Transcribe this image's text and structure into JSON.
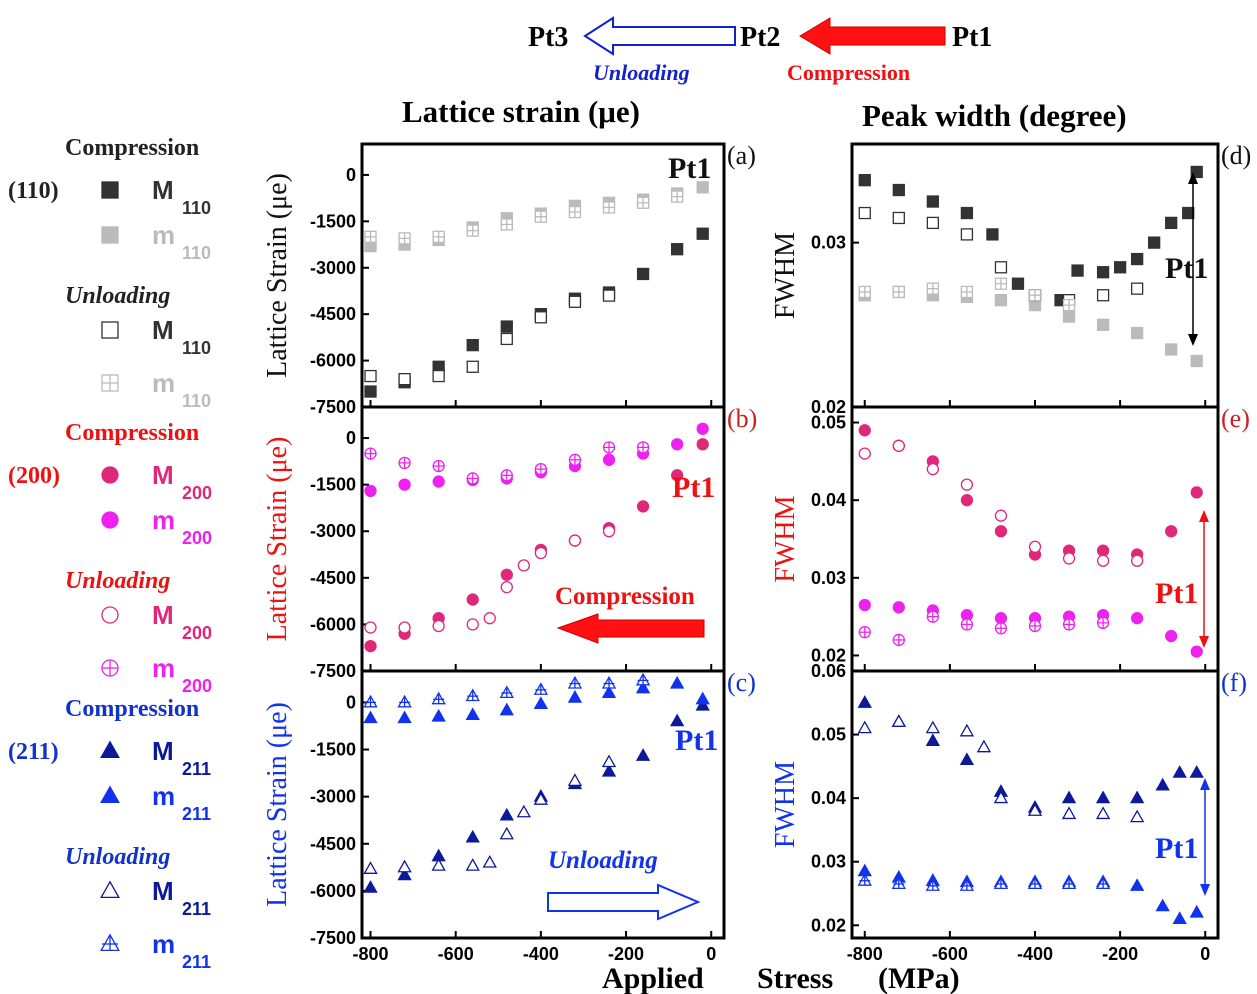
{
  "header": {
    "pt1": "Pt1",
    "pt2": "Pt2",
    "pt3": "Pt3",
    "unloading": "Unloading",
    "compression": "Compression",
    "lattice_title": "Lattice strain (μe)",
    "peak_title": "Peak  width (degree)",
    "xlabel_applied": "Applied",
    "xlabel_stress": "Stress",
    "xlabel_unit": "(MPa)"
  },
  "colors": {
    "black_dark": "#333333",
    "gray_light": "#bbbbbb",
    "pink_dark": "#e0287a",
    "magenta": "#ee22ee",
    "navy": "#0c1a9a",
    "blue": "#1133ee",
    "red": "#ff1111"
  },
  "legend": {
    "groups": [
      {
        "plane": "(110)",
        "color": "#222222",
        "compression": "Compression",
        "unloading": "Unloading",
        "items": [
          {
            "symbol": "filled-square",
            "color": "#333333",
            "main": "M",
            "sub": "110"
          },
          {
            "symbol": "filled-square",
            "color": "#bbbbbb",
            "main": "m",
            "sub": "110"
          },
          {
            "symbol": "open-square",
            "color": "#333333",
            "main": "M",
            "sub": "110"
          },
          {
            "symbol": "crossed-square",
            "color": "#bbbbbb",
            "main": "m",
            "sub": "110"
          }
        ]
      },
      {
        "plane": "(200)",
        "color": "#ee1111",
        "compression": "Compression",
        "unloading": "Unloading",
        "items": [
          {
            "symbol": "filled-circle",
            "color": "#e0287a",
            "main": "M",
            "sub": "200"
          },
          {
            "symbol": "filled-circle",
            "color": "#ee22ee",
            "main": "m",
            "sub": "200"
          },
          {
            "symbol": "open-circle",
            "color": "#e0287a",
            "main": "M",
            "sub": "200"
          },
          {
            "symbol": "crossed-circle",
            "color": "#ee22ee",
            "main": "m",
            "sub": "200"
          }
        ]
      },
      {
        "plane": "(211)",
        "color": "#1133cc",
        "compression": "Compression",
        "unloading": "Unloading",
        "items": [
          {
            "symbol": "filled-triangle",
            "color": "#0c1a9a",
            "main": "M",
            "sub": "211"
          },
          {
            "symbol": "filled-triangle",
            "color": "#1133ee",
            "main": "m",
            "sub": "211"
          },
          {
            "symbol": "open-triangle",
            "color": "#0c1a9a",
            "main": "M",
            "sub": "211"
          },
          {
            "symbol": "crossed-triangle",
            "color": "#1133ee",
            "main": "m",
            "sub": "211"
          }
        ]
      }
    ]
  },
  "chart_data": [
    {
      "id": "a",
      "panel_label": "(a)",
      "type": "scatter",
      "ylabel": "Lattice Strain (μe)",
      "xlabel": "Applied Stress (MPa)",
      "xlim": [
        -820,
        30
      ],
      "ylim": [
        -7500,
        1000
      ],
      "yticks": [
        0,
        -1500,
        -3000,
        -4500,
        -6000,
        -7500
      ],
      "xticks": [
        -800,
        -600,
        -400,
        -200,
        0
      ],
      "annotation": "Pt1",
      "series": [
        {
          "key": "M110_c",
          "symbol": "filled-square",
          "color": "#333333",
          "x": [
            -800,
            -720,
            -640,
            -560,
            -480,
            -400,
            -320,
            -240,
            -160,
            -80,
            -20
          ],
          "y": [
            -7000,
            -6700,
            -6200,
            -5500,
            -4900,
            -4500,
            -4000,
            -3800,
            -3200,
            -2400,
            -1900
          ]
        },
        {
          "key": "m110_c",
          "symbol": "filled-square",
          "color": "#bbbbbb",
          "x": [
            -800,
            -720,
            -640,
            -560,
            -480,
            -400,
            -320,
            -240,
            -160,
            -80,
            -20
          ],
          "y": [
            -2300,
            -2250,
            -2100,
            -1700,
            -1400,
            -1250,
            -1000,
            -900,
            -800,
            -600,
            -400
          ]
        },
        {
          "key": "M110_u",
          "symbol": "open-square",
          "color": "#333333",
          "x": [
            -800,
            -720,
            -640,
            -560,
            -480,
            -400,
            -320,
            -240
          ],
          "y": [
            -6500,
            -6600,
            -6500,
            -6200,
            -5300,
            -4600,
            -4100,
            -3900
          ]
        },
        {
          "key": "m110_u",
          "symbol": "crossed-square",
          "color": "#bbbbbb",
          "x": [
            -800,
            -720,
            -640,
            -560,
            -480,
            -400,
            -320,
            -240,
            -160,
            -80
          ],
          "y": [
            -2000,
            -2050,
            -2000,
            -1800,
            -1600,
            -1350,
            -1200,
            -1050,
            -900,
            -700
          ]
        }
      ]
    },
    {
      "id": "b",
      "panel_label": "(b)",
      "type": "scatter",
      "ylabel": "Lattice Strain (μe)",
      "xlabel": "Applied Stress (MPa)",
      "xlim": [
        -820,
        30
      ],
      "ylim": [
        -7500,
        1000
      ],
      "yticks": [
        0,
        -1500,
        -3000,
        -4500,
        -6000,
        -7500
      ],
      "xticks": [
        -800,
        -600,
        -400,
        -200,
        0
      ],
      "annotation": "Pt1",
      "arrow_label": "Compression",
      "series": [
        {
          "key": "M200_c",
          "symbol": "filled-circle",
          "color": "#e0287a",
          "x": [
            -800,
            -720,
            -640,
            -560,
            -480,
            -400,
            -320,
            -240,
            -160,
            -80,
            -20
          ],
          "y": [
            -6700,
            -6300,
            -5800,
            -5200,
            -4400,
            -3600,
            -3300,
            -2900,
            -2200,
            -1200,
            -200
          ]
        },
        {
          "key": "m200_c",
          "symbol": "filled-circle",
          "color": "#ee22ee",
          "x": [
            -800,
            -720,
            -640,
            -560,
            -480,
            -400,
            -320,
            -240,
            -160,
            -80,
            -20
          ],
          "y": [
            -1700,
            -1500,
            -1400,
            -1350,
            -1300,
            -1100,
            -900,
            -700,
            -500,
            -200,
            300
          ]
        },
        {
          "key": "M200_u",
          "symbol": "open-circle",
          "color": "#e0287a",
          "x": [
            -800,
            -720,
            -640,
            -560,
            -520,
            -480,
            -440,
            -400,
            -320,
            -240
          ],
          "y": [
            -6100,
            -6100,
            -6050,
            -6000,
            -5800,
            -4800,
            -4100,
            -3700,
            -3300,
            -3000
          ]
        },
        {
          "key": "m200_u",
          "symbol": "crossed-circle",
          "color": "#ee22ee",
          "x": [
            -800,
            -720,
            -640,
            -560,
            -480,
            -400,
            -320,
            -240,
            -160
          ],
          "y": [
            -500,
            -800,
            -900,
            -1300,
            -1200,
            -1000,
            -700,
            -300,
            -300
          ]
        }
      ]
    },
    {
      "id": "c",
      "panel_label": "(c)",
      "type": "scatter",
      "ylabel": "Lattice Strain (μe)",
      "xlabel": "Applied Stress (MPa)",
      "xlim": [
        -820,
        30
      ],
      "ylim": [
        -7500,
        1000
      ],
      "yticks": [
        0,
        -1500,
        -3000,
        -4500,
        -6000,
        -7500
      ],
      "xticks": [
        -800,
        -600,
        -400,
        -200,
        0
      ],
      "xtick_labels": [
        "-800",
        "-600",
        "-400",
        "-200",
        "0"
      ],
      "annotation": "Pt1",
      "arrow_label": "Unloading",
      "series": [
        {
          "key": "M211_c",
          "symbol": "filled-triangle",
          "color": "#0c1a9a",
          "x": [
            -800,
            -720,
            -640,
            -560,
            -480,
            -400,
            -320,
            -240,
            -160,
            -80,
            -20
          ],
          "y": [
            -5900,
            -5500,
            -4900,
            -4300,
            -3600,
            -3000,
            -2600,
            -2200,
            -1700,
            -600,
            -100
          ]
        },
        {
          "key": "m211_c",
          "symbol": "filled-triangle",
          "color": "#1133ee",
          "x": [
            -800,
            -720,
            -640,
            -560,
            -480,
            -400,
            -320,
            -240,
            -160,
            -80,
            -20
          ],
          "y": [
            -500,
            -500,
            -450,
            -400,
            -250,
            -50,
            150,
            300,
            450,
            600,
            100
          ]
        },
        {
          "key": "M211_u",
          "symbol": "open-triangle",
          "color": "#0c1a9a",
          "x": [
            -800,
            -720,
            -640,
            -560,
            -520,
            -480,
            -440,
            -400,
            -320,
            -240
          ],
          "y": [
            -5300,
            -5250,
            -5200,
            -5200,
            -5100,
            -4200,
            -3500,
            -3100,
            -2500,
            -1900
          ]
        },
        {
          "key": "m211_u",
          "symbol": "crossed-triangle",
          "color": "#1133ee",
          "x": [
            -800,
            -720,
            -640,
            -560,
            -480,
            -400,
            -320,
            -240,
            -160
          ],
          "y": [
            0,
            0,
            100,
            200,
            300,
            400,
            600,
            600,
            700
          ]
        }
      ]
    },
    {
      "id": "d",
      "panel_label": "(d)",
      "type": "scatter",
      "ylabel": "FWHM",
      "xlabel": "Applied Stress (MPa)",
      "xlim": [
        -830,
        30
      ],
      "ylim": [
        0.02,
        0.036
      ],
      "yticks": [
        0.03,
        0.02
      ],
      "xticks": [
        -800,
        -600,
        -400,
        -200,
        0
      ],
      "annotation": "Pt1",
      "series": [
        {
          "key": "M110_c",
          "symbol": "filled-square",
          "color": "#333333",
          "x": [
            -800,
            -720,
            -640,
            -560,
            -500,
            -440,
            -400,
            -340,
            -300,
            -240,
            -200,
            -160,
            -120,
            -80,
            -40,
            -20
          ],
          "y": [
            0.0338,
            0.0332,
            0.0325,
            0.0318,
            0.0305,
            0.0275,
            0.0268,
            0.0265,
            0.0283,
            0.0282,
            0.0285,
            0.029,
            0.03,
            0.0312,
            0.0318,
            0.0343
          ]
        },
        {
          "key": "m110_c",
          "symbol": "filled-square",
          "color": "#bbbbbb",
          "x": [
            -800,
            -720,
            -640,
            -560,
            -480,
            -400,
            -320,
            -240,
            -160,
            -80,
            -20
          ],
          "y": [
            0.0268,
            0.027,
            0.0268,
            0.0267,
            0.0265,
            0.0262,
            0.0255,
            0.025,
            0.0245,
            0.0235,
            0.0228
          ]
        },
        {
          "key": "M110_u",
          "symbol": "open-square",
          "color": "#333333",
          "x": [
            -800,
            -720,
            -640,
            -560,
            -480,
            -400,
            -320,
            -240,
            -160
          ],
          "y": [
            0.0318,
            0.0315,
            0.0312,
            0.0305,
            0.0285,
            0.0268,
            0.0265,
            0.0268,
            0.0272
          ]
        },
        {
          "key": "m110_u",
          "symbol": "crossed-square",
          "color": "#bbbbbb",
          "x": [
            -800,
            -720,
            -640,
            -560,
            -480,
            -400,
            -320
          ],
          "y": [
            0.027,
            0.027,
            0.0272,
            0.027,
            0.0275,
            0.0268,
            0.0262
          ]
        }
      ]
    },
    {
      "id": "e",
      "panel_label": "(e)",
      "type": "scatter",
      "ylabel": "FWHM",
      "xlabel": "Applied Stress (MPa)",
      "xlim": [
        -830,
        30
      ],
      "ylim": [
        0.018,
        0.052
      ],
      "yticks": [
        0.05,
        0.04,
        0.03,
        0.02
      ],
      "xticks": [
        -800,
        -600,
        -400,
        -200,
        0
      ],
      "annotation": "Pt1",
      "series": [
        {
          "key": "M200_c",
          "symbol": "filled-circle",
          "color": "#e0287a",
          "x": [
            -800,
            -720,
            -640,
            -560,
            -480,
            -400,
            -320,
            -240,
            -160,
            -80,
            -20
          ],
          "y": [
            0.049,
            0.047,
            0.045,
            0.04,
            0.036,
            0.033,
            0.0335,
            0.0335,
            0.033,
            0.036,
            0.041
          ]
        },
        {
          "key": "m200_c",
          "symbol": "filled-circle",
          "color": "#ee22ee",
          "x": [
            -800,
            -720,
            -640,
            -560,
            -480,
            -400,
            -320,
            -240,
            -160,
            -80,
            -20
          ],
          "y": [
            0.0265,
            0.0262,
            0.0258,
            0.0252,
            0.0248,
            0.0248,
            0.025,
            0.0252,
            0.0248,
            0.0225,
            0.0205
          ]
        },
        {
          "key": "M200_u",
          "symbol": "open-circle",
          "color": "#e0287a",
          "x": [
            -800,
            -720,
            -640,
            -560,
            -480,
            -400,
            -320,
            -240,
            -160
          ],
          "y": [
            0.046,
            0.047,
            0.044,
            0.042,
            0.038,
            0.034,
            0.0325,
            0.0322,
            0.0322
          ]
        },
        {
          "key": "m200_u",
          "symbol": "crossed-circle",
          "color": "#ee22ee",
          "x": [
            -800,
            -720,
            -640,
            -560,
            -480,
            -400,
            -320,
            -240
          ],
          "y": [
            0.023,
            0.022,
            0.025,
            0.024,
            0.0235,
            0.0238,
            0.024,
            0.0242
          ]
        }
      ]
    },
    {
      "id": "f",
      "panel_label": "(f)",
      "type": "scatter",
      "ylabel": "FWHM",
      "xlabel": "Applied Stress (MPa)",
      "xlim": [
        -830,
        30
      ],
      "ylim": [
        0.018,
        0.06
      ],
      "yticks": [
        0.05,
        0.04,
        0.03,
        0.02
      ],
      "top_tick_label": "0.06",
      "xticks": [
        -800,
        -600,
        -400,
        -200,
        0
      ],
      "xtick_labels": [
        "-800",
        "-600",
        "-400",
        "-200",
        "0"
      ],
      "annotation": "Pt1",
      "series": [
        {
          "key": "M211_c",
          "symbol": "filled-triangle",
          "color": "#0c1a9a",
          "x": [
            -800,
            -720,
            -640,
            -560,
            -480,
            -400,
            -320,
            -240,
            -160,
            -100,
            -60,
            -20
          ],
          "y": [
            0.055,
            0.052,
            0.049,
            0.046,
            0.041,
            0.0385,
            0.04,
            0.04,
            0.04,
            0.042,
            0.044,
            0.044
          ]
        },
        {
          "key": "m211_c",
          "symbol": "filled-triangle",
          "color": "#1133ee",
          "x": [
            -800,
            -720,
            -640,
            -560,
            -480,
            -400,
            -320,
            -240,
            -160,
            -100,
            -60,
            -20
          ],
          "y": [
            0.0285,
            0.0275,
            0.027,
            0.0268,
            0.0268,
            0.0268,
            0.0268,
            0.0268,
            0.0262,
            0.023,
            0.021,
            0.022
          ]
        },
        {
          "key": "M211_u",
          "symbol": "open-triangle",
          "color": "#0c1a9a",
          "x": [
            -800,
            -720,
            -640,
            -560,
            -520,
            -480,
            -400,
            -320,
            -240,
            -160
          ],
          "y": [
            0.051,
            0.052,
            0.051,
            0.0505,
            0.048,
            0.04,
            0.038,
            0.0375,
            0.0375,
            0.037
          ]
        },
        {
          "key": "m211_u",
          "symbol": "crossed-triangle",
          "color": "#1133ee",
          "x": [
            -800,
            -720,
            -640,
            -560,
            -480,
            -400,
            -320,
            -240
          ],
          "y": [
            0.027,
            0.0265,
            0.0262,
            0.0262,
            0.0265,
            0.0265,
            0.0265,
            0.0265
          ]
        }
      ]
    }
  ]
}
